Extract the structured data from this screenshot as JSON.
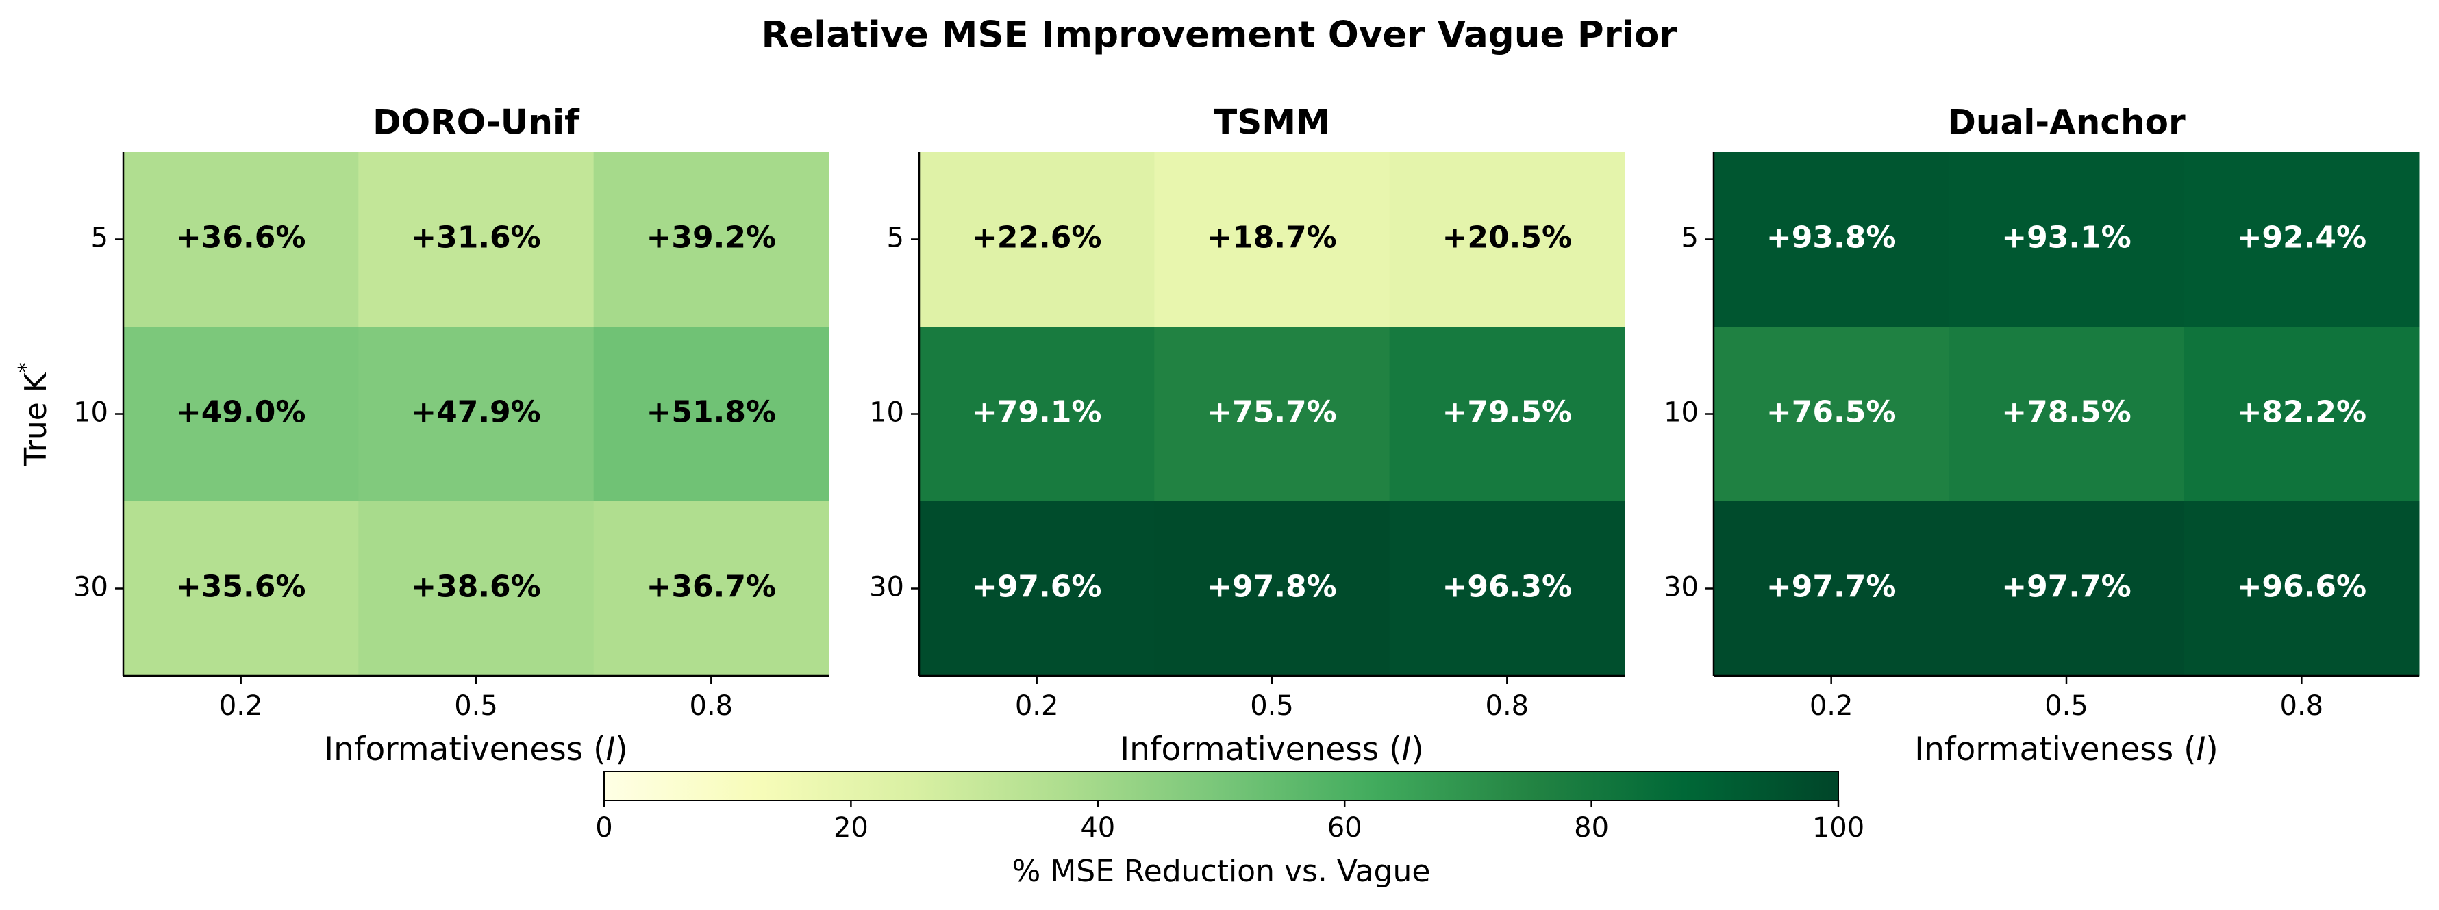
{
  "figure_title": "Relative MSE Improvement Over Vague Prior",
  "shared": {
    "ylabel_main": "True K",
    "ylabel_sup": "*",
    "xlabel_main": "Informativeness (",
    "xlabel_var": "I",
    "xlabel_close": ")"
  },
  "chart_data": [
    {
      "type": "heatmap",
      "title": "DORO-Unif",
      "x_categories": [
        "0.2",
        "0.5",
        "0.8"
      ],
      "y_categories": [
        "5",
        "10",
        "30"
      ],
      "values": [
        [
          36.6,
          31.6,
          39.2
        ],
        [
          49.0,
          47.9,
          51.8
        ],
        [
          35.6,
          38.6,
          36.7
        ]
      ],
      "labels": [
        [
          "+36.6%",
          "+31.6%",
          "+39.2%"
        ],
        [
          "+49.0%",
          "+47.9%",
          "+51.8%"
        ],
        [
          "+35.6%",
          "+38.6%",
          "+36.7%"
        ]
      ],
      "xlabel": "Informativeness (I)",
      "ylabel": "True K*"
    },
    {
      "type": "heatmap",
      "title": "TSMM",
      "x_categories": [
        "0.2",
        "0.5",
        "0.8"
      ],
      "y_categories": [
        "5",
        "10",
        "30"
      ],
      "values": [
        [
          22.6,
          18.7,
          20.5
        ],
        [
          79.1,
          75.7,
          79.5
        ],
        [
          97.6,
          97.8,
          96.3
        ]
      ],
      "labels": [
        [
          "+22.6%",
          "+18.7%",
          "+20.5%"
        ],
        [
          "+79.1%",
          "+75.7%",
          "+79.5%"
        ],
        [
          "+97.6%",
          "+97.8%",
          "+96.3%"
        ]
      ],
      "xlabel": "Informativeness (I)",
      "ylabel": ""
    },
    {
      "type": "heatmap",
      "title": "Dual-Anchor",
      "x_categories": [
        "0.2",
        "0.5",
        "0.8"
      ],
      "y_categories": [
        "5",
        "10",
        "30"
      ],
      "values": [
        [
          93.8,
          93.1,
          92.4
        ],
        [
          76.5,
          78.5,
          82.2
        ],
        [
          97.7,
          97.7,
          96.6
        ]
      ],
      "labels": [
        [
          "+93.8%",
          "+93.1%",
          "+92.4%"
        ],
        [
          "+76.5%",
          "+78.5%",
          "+82.2%"
        ],
        [
          "+97.7%",
          "+97.7%",
          "+96.6%"
        ]
      ],
      "xlabel": "Informativeness (I)",
      "ylabel": ""
    }
  ],
  "colorbar": {
    "label": "% MSE Reduction vs. Vague",
    "min": 0,
    "max": 100,
    "ticks": [
      "0",
      "20",
      "40",
      "60",
      "80",
      "100"
    ],
    "colormap": "YlGn",
    "stops": [
      "#ffffe5",
      "#f7fcb9",
      "#d9f0a3",
      "#addd8e",
      "#78c679",
      "#41ab5d",
      "#238443",
      "#006837",
      "#004529"
    ]
  }
}
